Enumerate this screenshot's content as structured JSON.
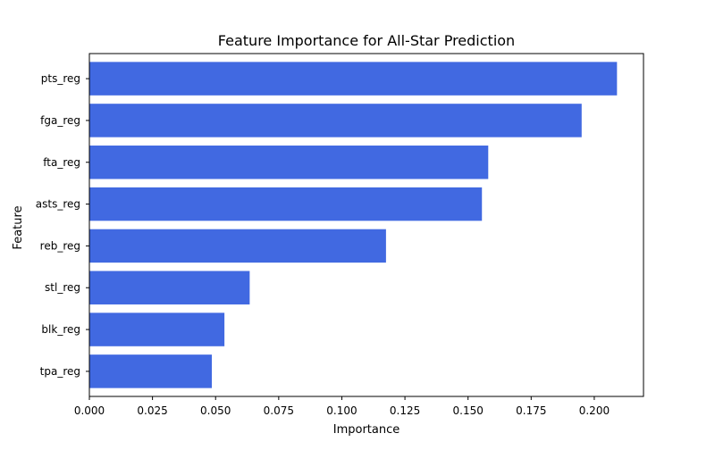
{
  "chart_data": {
    "type": "bar",
    "orientation": "horizontal",
    "title": "Feature Importance for All-Star Prediction",
    "xlabel": "Importance",
    "ylabel": "Feature",
    "categories": [
      "pts_reg",
      "fga_reg",
      "fta_reg",
      "asts_reg",
      "reb_reg",
      "stl_reg",
      "blk_reg",
      "tpa_reg"
    ],
    "values": [
      0.209,
      0.195,
      0.158,
      0.1555,
      0.1175,
      0.0635,
      0.0535,
      0.0485
    ],
    "xlim": [
      0,
      0.2195
    ],
    "xticks": [
      0.0,
      0.025,
      0.05,
      0.075,
      0.1,
      0.125,
      0.15,
      0.175,
      0.2
    ],
    "xtick_labels": [
      "0.000",
      "0.025",
      "0.050",
      "0.075",
      "0.100",
      "0.125",
      "0.150",
      "0.175",
      "0.200"
    ],
    "grid": false,
    "bar_color": "#4169e1"
  }
}
